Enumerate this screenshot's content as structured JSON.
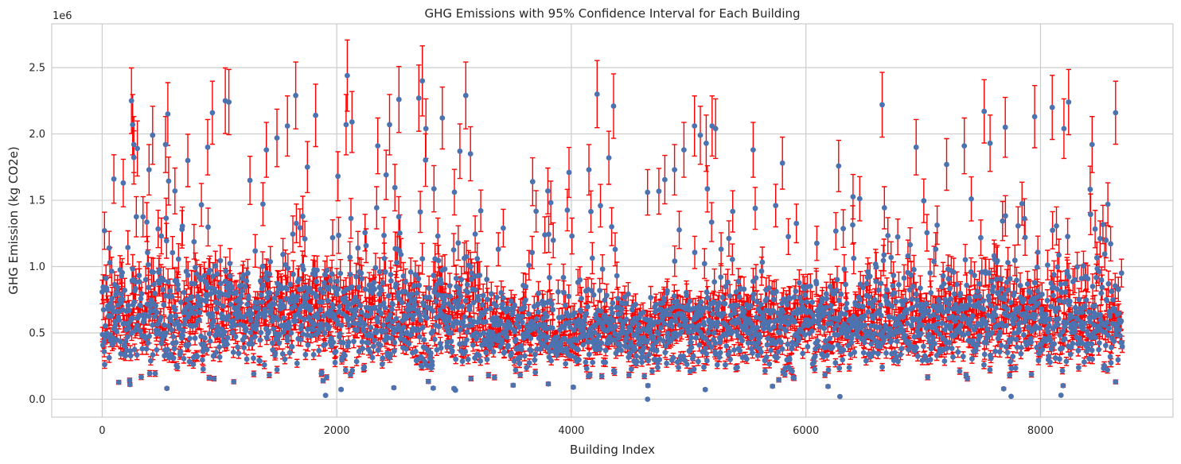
{
  "chart_data": {
    "type": "scatter",
    "title": "GHG Emissions with 95% Confidence Interval for Each Building",
    "xlabel": "Building Index",
    "ylabel": "GHG Emission (kg CO2e)",
    "y_offset_label": "1e6",
    "xlim": [
      -430,
      9130
    ],
    "ylim": [
      -0.135,
      2.83
    ],
    "y_scale_factor": 1000000,
    "x_ticks": [
      0,
      2000,
      4000,
      6000,
      8000
    ],
    "x_tick_labels": [
      "0",
      "2000",
      "4000",
      "6000",
      "8000"
    ],
    "y_ticks": [
      0.0,
      0.5,
      1.0,
      1.5,
      2.0,
      2.5
    ],
    "y_tick_labels": [
      "0.0",
      "0.5",
      "1.0",
      "1.5",
      "2.0",
      "2.5"
    ],
    "grid": true,
    "n_buildings": 8700,
    "marker_color": "#4c72b0",
    "errorbar_color": "#ff0000",
    "ci_relative_halfwidth": 0.11,
    "highlighted_points": [
      {
        "x": 20,
        "y": 1.27
      },
      {
        "x": 60,
        "y": 1.14
      },
      {
        "x": 100,
        "y": 1.66
      },
      {
        "x": 180,
        "y": 1.63
      },
      {
        "x": 250,
        "y": 2.25
      },
      {
        "x": 260,
        "y": 2.07
      },
      {
        "x": 270,
        "y": 1.92
      },
      {
        "x": 300,
        "y": 1.89
      },
      {
        "x": 400,
        "y": 1.73
      },
      {
        "x": 430,
        "y": 1.99
      },
      {
        "x": 540,
        "y": 1.92
      },
      {
        "x": 560,
        "y": 2.15
      },
      {
        "x": 620,
        "y": 1.57
      },
      {
        "x": 730,
        "y": 1.8
      },
      {
        "x": 900,
        "y": 1.9
      },
      {
        "x": 940,
        "y": 2.16
      },
      {
        "x": 1050,
        "y": 2.25
      },
      {
        "x": 1080,
        "y": 2.24
      },
      {
        "x": 1260,
        "y": 1.65
      },
      {
        "x": 1400,
        "y": 1.88
      },
      {
        "x": 1490,
        "y": 1.97
      },
      {
        "x": 1580,
        "y": 2.06
      },
      {
        "x": 1650,
        "y": 2.29
      },
      {
        "x": 1750,
        "y": 1.75
      },
      {
        "x": 1820,
        "y": 2.14
      },
      {
        "x": 2080,
        "y": 2.07
      },
      {
        "x": 2090,
        "y": 2.44
      },
      {
        "x": 2130,
        "y": 2.09
      },
      {
        "x": 2350,
        "y": 1.91
      },
      {
        "x": 2450,
        "y": 2.07
      },
      {
        "x": 2530,
        "y": 2.26
      },
      {
        "x": 2700,
        "y": 2.27
      },
      {
        "x": 2730,
        "y": 2.4
      },
      {
        "x": 2760,
        "y": 2.04
      },
      {
        "x": 2900,
        "y": 2.12
      },
      {
        "x": 3050,
        "y": 1.87
      },
      {
        "x": 3100,
        "y": 2.29
      },
      {
        "x": 3140,
        "y": 1.85
      },
      {
        "x": 3420,
        "y": 1.29
      },
      {
        "x": 3670,
        "y": 1.64
      },
      {
        "x": 3800,
        "y": 1.57
      },
      {
        "x": 3980,
        "y": 1.71
      },
      {
        "x": 4150,
        "y": 1.73
      },
      {
        "x": 4220,
        "y": 2.3
      },
      {
        "x": 4320,
        "y": 1.82
      },
      {
        "x": 4360,
        "y": 2.21
      },
      {
        "x": 4650,
        "y": 1.56
      },
      {
        "x": 4880,
        "y": 1.73
      },
      {
        "x": 4960,
        "y": 1.88
      },
      {
        "x": 5050,
        "y": 2.06
      },
      {
        "x": 5100,
        "y": 1.99
      },
      {
        "x": 5150,
        "y": 1.93
      },
      {
        "x": 5200,
        "y": 2.06
      },
      {
        "x": 5230,
        "y": 2.04
      },
      {
        "x": 5550,
        "y": 1.88
      },
      {
        "x": 5800,
        "y": 1.78
      },
      {
        "x": 6650,
        "y": 2.22
      },
      {
        "x": 6940,
        "y": 1.9
      },
      {
        "x": 7200,
        "y": 1.77
      },
      {
        "x": 7350,
        "y": 1.91
      },
      {
        "x": 7520,
        "y": 2.17
      },
      {
        "x": 7570,
        "y": 1.93
      },
      {
        "x": 7700,
        "y": 2.05
      },
      {
        "x": 7950,
        "y": 2.13
      },
      {
        "x": 8100,
        "y": 2.2
      },
      {
        "x": 8200,
        "y": 2.04
      },
      {
        "x": 8240,
        "y": 2.24
      },
      {
        "x": 8440,
        "y": 1.92
      },
      {
        "x": 8640,
        "y": 2.16
      },
      {
        "x": 4650,
        "y": 0.0
      },
      {
        "x": 6290,
        "y": 0.02
      }
    ]
  }
}
